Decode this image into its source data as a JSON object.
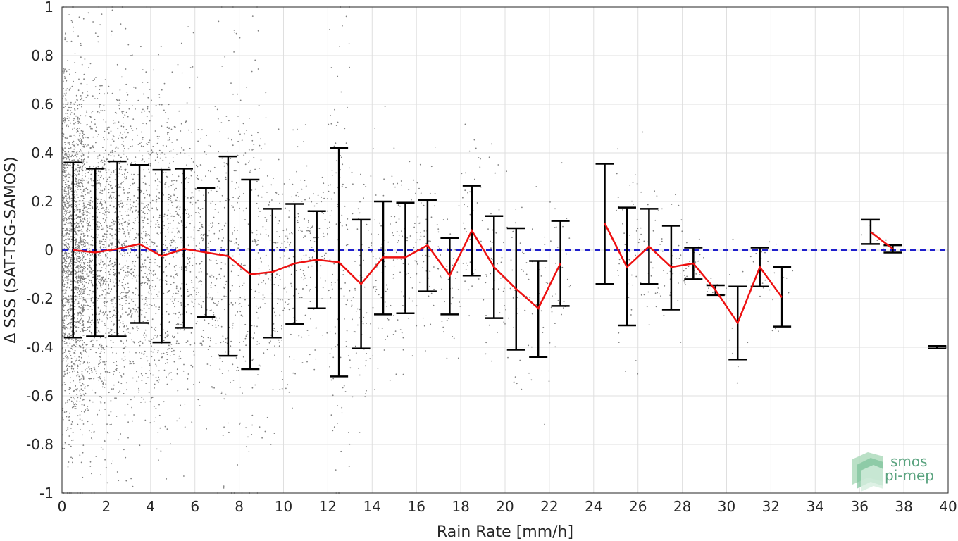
{
  "chart_data": {
    "type": "scatter",
    "xlabel": "Rain Rate [mm/h]",
    "ylabel": "Δ SSS (SAT-TSG-SAMOS)",
    "xlim": [
      0,
      40
    ],
    "ylim": [
      -1,
      1
    ],
    "xticks": [
      0,
      2,
      4,
      6,
      8,
      10,
      12,
      14,
      16,
      18,
      20,
      22,
      24,
      26,
      28,
      30,
      32,
      34,
      36,
      38,
      40
    ],
    "yticks": [
      1,
      0.8,
      0.6,
      0.4,
      0.2,
      0,
      -0.2,
      -0.4,
      -0.6,
      -0.8,
      -1
    ],
    "ytick_labels": [
      "1",
      "0.8",
      "0.6",
      "0.4",
      "0.2",
      "0",
      "-0.2",
      "-0.4",
      "-0.6",
      "-0.8",
      "-1"
    ],
    "grid": true,
    "reference_line": {
      "y": 0,
      "color": "#1f1fcc",
      "style": "dashed"
    },
    "mean_color": "#ee1111",
    "errorbar_color": "#000000",
    "scatter_color": "#808080",
    "bins": [
      {
        "x": 0.5,
        "mean": 0.0,
        "upper": 0.36,
        "lower": -0.36
      },
      {
        "x": 1.5,
        "mean": -0.01,
        "upper": 0.335,
        "lower": -0.355
      },
      {
        "x": 2.5,
        "mean": 0.005,
        "upper": 0.365,
        "lower": -0.355
      },
      {
        "x": 3.5,
        "mean": 0.025,
        "upper": 0.35,
        "lower": -0.3
      },
      {
        "x": 4.5,
        "mean": -0.025,
        "upper": 0.33,
        "lower": -0.38
      },
      {
        "x": 5.5,
        "mean": 0.005,
        "upper": 0.335,
        "lower": -0.32
      },
      {
        "x": 6.5,
        "mean": -0.01,
        "upper": 0.255,
        "lower": -0.275
      },
      {
        "x": 7.5,
        "mean": -0.025,
        "upper": 0.385,
        "lower": -0.435
      },
      {
        "x": 8.5,
        "mean": -0.1,
        "upper": 0.29,
        "lower": -0.49
      },
      {
        "x": 9.5,
        "mean": -0.09,
        "upper": 0.17,
        "lower": -0.36
      },
      {
        "x": 10.5,
        "mean": -0.055,
        "upper": 0.19,
        "lower": -0.305
      },
      {
        "x": 11.5,
        "mean": -0.04,
        "upper": 0.16,
        "lower": -0.24
      },
      {
        "x": 12.5,
        "mean": -0.05,
        "upper": 0.42,
        "lower": -0.52
      },
      {
        "x": 13.5,
        "mean": -0.14,
        "upper": 0.125,
        "lower": -0.405
      },
      {
        "x": 14.5,
        "mean": -0.03,
        "upper": 0.2,
        "lower": -0.265
      },
      {
        "x": 15.5,
        "mean": -0.03,
        "upper": 0.195,
        "lower": -0.26
      },
      {
        "x": 16.5,
        "mean": 0.02,
        "upper": 0.205,
        "lower": -0.17
      },
      {
        "x": 17.5,
        "mean": -0.105,
        "upper": 0.05,
        "lower": -0.265
      },
      {
        "x": 18.5,
        "mean": 0.08,
        "upper": 0.265,
        "lower": -0.105
      },
      {
        "x": 19.5,
        "mean": -0.07,
        "upper": 0.14,
        "lower": -0.28
      },
      {
        "x": 20.5,
        "mean": -0.16,
        "upper": 0.09,
        "lower": -0.41
      },
      {
        "x": 21.5,
        "mean": -0.24,
        "upper": -0.045,
        "lower": -0.44
      },
      {
        "x": 22.5,
        "mean": -0.055,
        "upper": 0.12,
        "lower": -0.23
      },
      {
        "x": 24.5,
        "mean": 0.11,
        "upper": 0.355,
        "lower": -0.14
      },
      {
        "x": 25.5,
        "mean": -0.07,
        "upper": 0.175,
        "lower": -0.31
      },
      {
        "x": 26.5,
        "mean": 0.015,
        "upper": 0.17,
        "lower": -0.14
      },
      {
        "x": 27.5,
        "mean": -0.07,
        "upper": 0.1,
        "lower": -0.245
      },
      {
        "x": 28.5,
        "mean": -0.055,
        "upper": 0.01,
        "lower": -0.12
      },
      {
        "x": 29.5,
        "mean": -0.165,
        "upper": -0.145,
        "lower": -0.185
      },
      {
        "x": 30.5,
        "mean": -0.3,
        "upper": -0.15,
        "lower": -0.45
      },
      {
        "x": 31.5,
        "mean": -0.07,
        "upper": 0.01,
        "lower": -0.15
      },
      {
        "x": 32.5,
        "mean": -0.195,
        "upper": -0.07,
        "lower": -0.315
      },
      {
        "x": 36.5,
        "mean": 0.075,
        "upper": 0.125,
        "lower": 0.025
      },
      {
        "x": 37.5,
        "mean": 0.005,
        "upper": 0.02,
        "lower": -0.01
      },
      {
        "x": 39.5,
        "mean": -0.4,
        "upper": -0.395,
        "lower": -0.405
      }
    ]
  },
  "logo": {
    "line1": "smos",
    "line2": "pi-mep"
  }
}
